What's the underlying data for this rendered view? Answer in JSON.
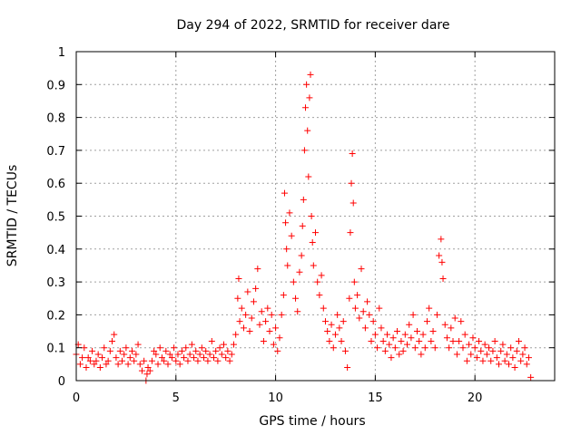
{
  "chart_data": {
    "type": "scatter",
    "title": "Day 294 of 2022, SRMTID for receiver dare",
    "xlabel": "GPS time / hours",
    "ylabel": "SRMTID / TECUs",
    "xlim": [
      0,
      24
    ],
    "ylim": [
      0,
      1
    ],
    "xticks": [
      0,
      5,
      10,
      15,
      20
    ],
    "xtick_labels": [
      "0",
      "5",
      "10",
      "15",
      "20"
    ],
    "yticks": [
      0,
      0.1,
      0.2,
      0.3,
      0.4,
      0.5,
      0.6,
      0.7,
      0.8,
      0.9,
      1
    ],
    "ytick_labels": [
      "0",
      "0.1",
      "0.2",
      "0.3",
      "0.4",
      "0.5",
      "0.6",
      "0.7",
      "0.8",
      "0.9",
      "1"
    ],
    "grid": true,
    "marker": "plus",
    "series": [
      {
        "name": "SRMTID",
        "color": "#ff0000",
        "points": [
          [
            0.0,
            0.08
          ],
          [
            0.1,
            0.11
          ],
          [
            0.2,
            0.05
          ],
          [
            0.3,
            0.07
          ],
          [
            0.4,
            0.1
          ],
          [
            0.5,
            0.04
          ],
          [
            0.6,
            0.07
          ],
          [
            0.7,
            0.06
          ],
          [
            0.8,
            0.09
          ],
          [
            0.9,
            0.05
          ],
          [
            1.0,
            0.06
          ],
          [
            1.1,
            0.08
          ],
          [
            1.2,
            0.04
          ],
          [
            1.3,
            0.07
          ],
          [
            1.4,
            0.1
          ],
          [
            1.5,
            0.05
          ],
          [
            1.6,
            0.06
          ],
          [
            1.7,
            0.09
          ],
          [
            1.8,
            0.12
          ],
          [
            1.9,
            0.14
          ],
          [
            2.0,
            0.07
          ],
          [
            2.1,
            0.05
          ],
          [
            2.2,
            0.09
          ],
          [
            2.3,
            0.06
          ],
          [
            2.4,
            0.08
          ],
          [
            2.5,
            0.1
          ],
          [
            2.6,
            0.05
          ],
          [
            2.7,
            0.07
          ],
          [
            2.8,
            0.09
          ],
          [
            2.9,
            0.06
          ],
          [
            3.0,
            0.08
          ],
          [
            3.1,
            0.11
          ],
          [
            3.2,
            0.05
          ],
          [
            3.3,
            0.03
          ],
          [
            3.4,
            0.06
          ],
          [
            3.5,
            0.0
          ],
          [
            3.55,
            0.02
          ],
          [
            3.6,
            0.04
          ],
          [
            3.7,
            0.03
          ],
          [
            3.8,
            0.06
          ],
          [
            3.9,
            0.09
          ],
          [
            4.0,
            0.08
          ],
          [
            4.1,
            0.05
          ],
          [
            4.2,
            0.1
          ],
          [
            4.3,
            0.07
          ],
          [
            4.4,
            0.06
          ],
          [
            4.5,
            0.09
          ],
          [
            4.6,
            0.05
          ],
          [
            4.7,
            0.08
          ],
          [
            4.8,
            0.07
          ],
          [
            4.9,
            0.1
          ],
          [
            5.0,
            0.06
          ],
          [
            5.1,
            0.08
          ],
          [
            5.2,
            0.05
          ],
          [
            5.3,
            0.09
          ],
          [
            5.4,
            0.07
          ],
          [
            5.5,
            0.1
          ],
          [
            5.6,
            0.06
          ],
          [
            5.7,
            0.08
          ],
          [
            5.8,
            0.11
          ],
          [
            5.9,
            0.07
          ],
          [
            6.0,
            0.09
          ],
          [
            6.1,
            0.06
          ],
          [
            6.2,
            0.08
          ],
          [
            6.3,
            0.1
          ],
          [
            6.4,
            0.07
          ],
          [
            6.5,
            0.09
          ],
          [
            6.6,
            0.06
          ],
          [
            6.7,
            0.08
          ],
          [
            6.8,
            0.12
          ],
          [
            6.9,
            0.07
          ],
          [
            7.0,
            0.09
          ],
          [
            7.1,
            0.06
          ],
          [
            7.2,
            0.1
          ],
          [
            7.3,
            0.08
          ],
          [
            7.4,
            0.11
          ],
          [
            7.5,
            0.07
          ],
          [
            7.6,
            0.09
          ],
          [
            7.7,
            0.06
          ],
          [
            7.8,
            0.08
          ],
          [
            7.9,
            0.11
          ],
          [
            8.0,
            0.14
          ],
          [
            8.1,
            0.25
          ],
          [
            8.15,
            0.31
          ],
          [
            8.2,
            0.18
          ],
          [
            8.3,
            0.22
          ],
          [
            8.4,
            0.16
          ],
          [
            8.5,
            0.2
          ],
          [
            8.6,
            0.27
          ],
          [
            8.7,
            0.15
          ],
          [
            8.8,
            0.19
          ],
          [
            8.9,
            0.24
          ],
          [
            9.0,
            0.28
          ],
          [
            9.1,
            0.34
          ],
          [
            9.2,
            0.17
          ],
          [
            9.3,
            0.21
          ],
          [
            9.4,
            0.12
          ],
          [
            9.5,
            0.18
          ],
          [
            9.6,
            0.22
          ],
          [
            9.7,
            0.15
          ],
          [
            9.8,
            0.2
          ],
          [
            9.9,
            0.11
          ],
          [
            10.0,
            0.16
          ],
          [
            10.1,
            0.09
          ],
          [
            10.2,
            0.13
          ],
          [
            10.3,
            0.2
          ],
          [
            10.4,
            0.26
          ],
          [
            10.45,
            0.57
          ],
          [
            10.5,
            0.48
          ],
          [
            10.55,
            0.4
          ],
          [
            10.6,
            0.35
          ],
          [
            10.7,
            0.51
          ],
          [
            10.8,
            0.44
          ],
          [
            10.9,
            0.3
          ],
          [
            11.0,
            0.25
          ],
          [
            11.1,
            0.21
          ],
          [
            11.2,
            0.33
          ],
          [
            11.3,
            0.38
          ],
          [
            11.35,
            0.47
          ],
          [
            11.4,
            0.55
          ],
          [
            11.45,
            0.7
          ],
          [
            11.5,
            0.83
          ],
          [
            11.55,
            0.9
          ],
          [
            11.6,
            0.76
          ],
          [
            11.65,
            0.62
          ],
          [
            11.7,
            0.86
          ],
          [
            11.75,
            0.93
          ],
          [
            11.8,
            0.5
          ],
          [
            11.85,
            0.42
          ],
          [
            11.9,
            0.35
          ],
          [
            12.0,
            0.45
          ],
          [
            12.1,
            0.3
          ],
          [
            12.2,
            0.26
          ],
          [
            12.3,
            0.32
          ],
          [
            12.4,
            0.22
          ],
          [
            12.5,
            0.18
          ],
          [
            12.6,
            0.15
          ],
          [
            12.7,
            0.12
          ],
          [
            12.8,
            0.17
          ],
          [
            12.9,
            0.1
          ],
          [
            13.0,
            0.14
          ],
          [
            13.1,
            0.2
          ],
          [
            13.2,
            0.16
          ],
          [
            13.3,
            0.12
          ],
          [
            13.4,
            0.18
          ],
          [
            13.5,
            0.09
          ],
          [
            13.6,
            0.04
          ],
          [
            13.7,
            0.25
          ],
          [
            13.75,
            0.45
          ],
          [
            13.8,
            0.6
          ],
          [
            13.85,
            0.69
          ],
          [
            13.9,
            0.54
          ],
          [
            13.95,
            0.3
          ],
          [
            14.0,
            0.22
          ],
          [
            14.1,
            0.26
          ],
          [
            14.2,
            0.19
          ],
          [
            14.3,
            0.34
          ],
          [
            14.4,
            0.21
          ],
          [
            14.5,
            0.16
          ],
          [
            14.6,
            0.24
          ],
          [
            14.7,
            0.2
          ],
          [
            14.8,
            0.12
          ],
          [
            14.9,
            0.18
          ],
          [
            15.0,
            0.14
          ],
          [
            15.1,
            0.1
          ],
          [
            15.2,
            0.22
          ],
          [
            15.3,
            0.16
          ],
          [
            15.4,
            0.12
          ],
          [
            15.5,
            0.09
          ],
          [
            15.6,
            0.14
          ],
          [
            15.7,
            0.11
          ],
          [
            15.8,
            0.07
          ],
          [
            15.9,
            0.13
          ],
          [
            16.0,
            0.1
          ],
          [
            16.1,
            0.15
          ],
          [
            16.2,
            0.08
          ],
          [
            16.3,
            0.12
          ],
          [
            16.4,
            0.09
          ],
          [
            16.5,
            0.14
          ],
          [
            16.6,
            0.11
          ],
          [
            16.7,
            0.17
          ],
          [
            16.8,
            0.13
          ],
          [
            16.9,
            0.2
          ],
          [
            17.0,
            0.1
          ],
          [
            17.1,
            0.15
          ],
          [
            17.2,
            0.12
          ],
          [
            17.3,
            0.08
          ],
          [
            17.4,
            0.14
          ],
          [
            17.5,
            0.1
          ],
          [
            17.6,
            0.18
          ],
          [
            17.7,
            0.22
          ],
          [
            17.8,
            0.12
          ],
          [
            17.9,
            0.15
          ],
          [
            18.0,
            0.1
          ],
          [
            18.1,
            0.2
          ],
          [
            18.2,
            0.38
          ],
          [
            18.3,
            0.43
          ],
          [
            18.35,
            0.36
          ],
          [
            18.4,
            0.31
          ],
          [
            18.5,
            0.17
          ],
          [
            18.6,
            0.13
          ],
          [
            18.7,
            0.1
          ],
          [
            18.8,
            0.16
          ],
          [
            18.9,
            0.12
          ],
          [
            19.0,
            0.19
          ],
          [
            19.1,
            0.08
          ],
          [
            19.2,
            0.12
          ],
          [
            19.3,
            0.18
          ],
          [
            19.4,
            0.1
          ],
          [
            19.5,
            0.14
          ],
          [
            19.6,
            0.06
          ],
          [
            19.7,
            0.11
          ],
          [
            19.8,
            0.08
          ],
          [
            19.9,
            0.13
          ],
          [
            20.0,
            0.1
          ],
          [
            20.1,
            0.07
          ],
          [
            20.2,
            0.12
          ],
          [
            20.3,
            0.09
          ],
          [
            20.4,
            0.06
          ],
          [
            20.5,
            0.11
          ],
          [
            20.6,
            0.08
          ],
          [
            20.7,
            0.1
          ],
          [
            20.8,
            0.06
          ],
          [
            20.9,
            0.09
          ],
          [
            21.0,
            0.12
          ],
          [
            21.1,
            0.07
          ],
          [
            21.2,
            0.05
          ],
          [
            21.3,
            0.09
          ],
          [
            21.4,
            0.11
          ],
          [
            21.5,
            0.06
          ],
          [
            21.6,
            0.08
          ],
          [
            21.7,
            0.05
          ],
          [
            21.8,
            0.1
          ],
          [
            21.9,
            0.07
          ],
          [
            22.0,
            0.04
          ],
          [
            22.1,
            0.09
          ],
          [
            22.2,
            0.12
          ],
          [
            22.3,
            0.06
          ],
          [
            22.4,
            0.08
          ],
          [
            22.5,
            0.1
          ],
          [
            22.6,
            0.05
          ],
          [
            22.7,
            0.07
          ],
          [
            22.8,
            0.01
          ]
        ]
      }
    ]
  }
}
